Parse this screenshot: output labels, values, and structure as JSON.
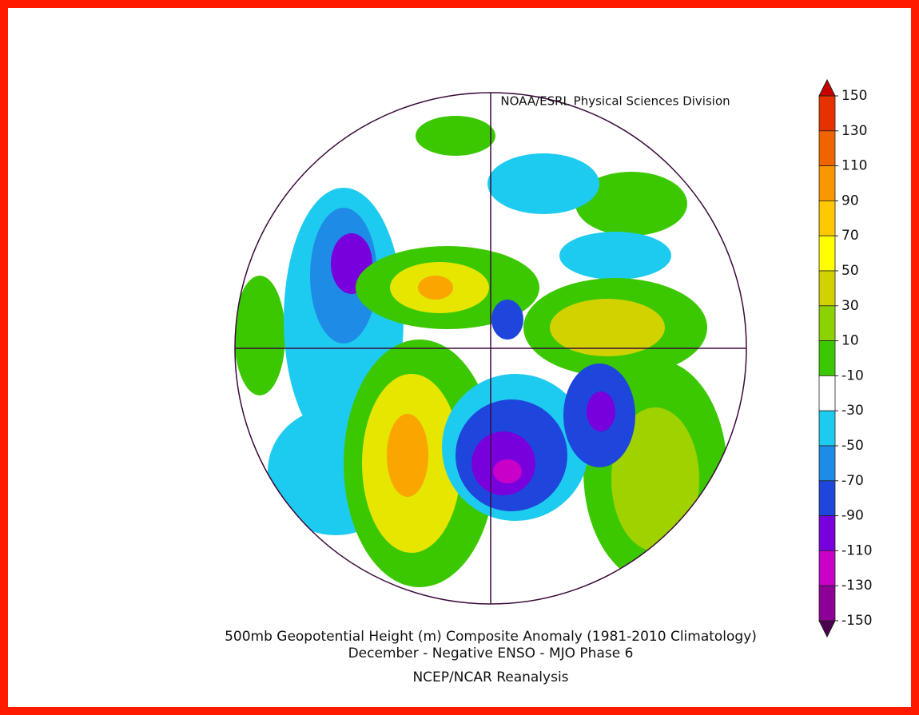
{
  "header": {
    "credit": "NOAA/ESRL Physical Sciences Division"
  },
  "title_lines": [
    "500mb Geopotential Height (m) Composite Anomaly (1981-2010 Climatology)",
    "December - Negative ENSO - MJO Phase 6"
  ],
  "source": "NCEP/NCAR Reanalysis",
  "colorbar": {
    "ticks": [
      150,
      130,
      110,
      90,
      70,
      50,
      30,
      10,
      -10,
      -30,
      -50,
      -70,
      -90,
      -110,
      -130,
      -150
    ],
    "colors": [
      "#e63200",
      "#f06400",
      "#fa9600",
      "#ffc800",
      "#ffff00",
      "#d2d200",
      "#8cd200",
      "#3cc800",
      "#ffffff",
      "#1ecbf0",
      "#1e8ce6",
      "#1e46dc",
      "#7800dc",
      "#c800c8",
      "#8c0096"
    ],
    "over_color": "#c80000",
    "under_color": "#4b0050"
  }
}
